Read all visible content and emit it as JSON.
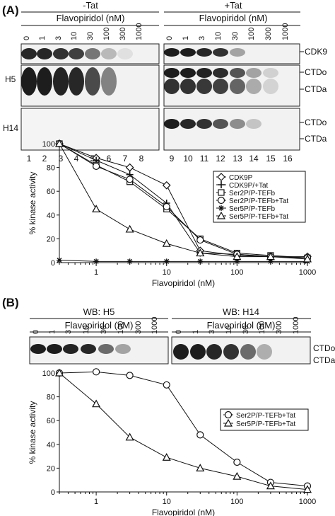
{
  "panel_a": {
    "label": "(A)",
    "minus_tat_label": "-Tat",
    "plus_tat_label": "+Tat",
    "drug_label": "Flavopiridol (nM)",
    "lane_conc_labels": [
      "0",
      "1",
      "3",
      "10",
      "30",
      "100",
      "300",
      "1000"
    ],
    "row_labels_left": [
      "H5",
      "H14"
    ],
    "row_labels_right": [
      "CDK9",
      "CTDo",
      "CTDa",
      "CTDo",
      "CTDa"
    ],
    "lane_numbers": [
      "1",
      "2",
      "3",
      "4",
      "5",
      "6",
      "7",
      "8",
      "9",
      "10",
      "11",
      "12",
      "13",
      "14",
      "15",
      "16"
    ]
  },
  "panel_b": {
    "label": "(B)",
    "wb_h5_label": "WB: H5",
    "wb_h14_label": "WB: H14",
    "drug_label": "Flavopiridol (nM)",
    "lane_conc_labels": [
      "0",
      "1",
      "3",
      "10",
      "30",
      "100",
      "300",
      "1000"
    ],
    "row_labels_right": [
      "CTDo",
      "CTDa"
    ]
  },
  "chart_data": [
    {
      "type": "line",
      "xscale": "log",
      "x": [
        0.3,
        1,
        3,
        10,
        30,
        100,
        300,
        1000
      ],
      "xticks": [
        "1",
        "10",
        "100",
        "1000"
      ],
      "xlabel": "Flavopiridol (nM)",
      "ylabel": "% kinase activity",
      "yticks": [
        "0",
        "20",
        "40",
        "60",
        "80",
        "100"
      ],
      "ylim": [
        0,
        100
      ],
      "legend_position": "right",
      "series": [
        {
          "name": "CDK9P",
          "marker": "diamond",
          "values": [
            100,
            88,
            80,
            65,
            10,
            6,
            5,
            5
          ]
        },
        {
          "name": "CDK9P/+Tat",
          "marker": "plus",
          "values": [
            100,
            86,
            74,
            50,
            8,
            7,
            5,
            4
          ]
        },
        {
          "name": "Ser2P/P-TEFb",
          "marker": "square",
          "values": [
            100,
            82,
            68,
            45,
            20,
            8,
            6,
            4
          ]
        },
        {
          "name": "Ser2P/P-TEFb+Tat",
          "marker": "circle",
          "values": [
            100,
            81,
            70,
            47,
            19,
            7,
            5,
            4
          ]
        },
        {
          "name": "Ser5P/P-TEFb",
          "marker": "star",
          "values": [
            2,
            1,
            1,
            1,
            1,
            1,
            1,
            1
          ]
        },
        {
          "name": "Ser5P/P-TEFb+Tat",
          "marker": "triangle",
          "values": [
            100,
            45,
            28,
            16,
            8,
            5,
            5,
            3
          ]
        }
      ]
    },
    {
      "type": "line",
      "xscale": "log",
      "x": [
        0.3,
        1,
        3,
        10,
        30,
        100,
        300,
        1000
      ],
      "xticks": [
        "1",
        "10",
        "100",
        "1000"
      ],
      "xlabel": "Flavopiridol (nM)",
      "ylabel": "% kinase activity",
      "yticks": [
        "0",
        "20",
        "40",
        "60",
        "80",
        "100"
      ],
      "ylim": [
        0,
        100
      ],
      "legend_position": "right",
      "series": [
        {
          "name": "Ser2P/P-TEFb+Tat",
          "marker": "circle",
          "values": [
            100,
            101,
            98,
            90,
            48,
            25,
            8,
            5
          ]
        },
        {
          "name": "Ser5P/P-TEFb+Tat",
          "marker": "triangle",
          "values": [
            100,
            74,
            46,
            29,
            20,
            13,
            5,
            2
          ]
        }
      ]
    }
  ]
}
